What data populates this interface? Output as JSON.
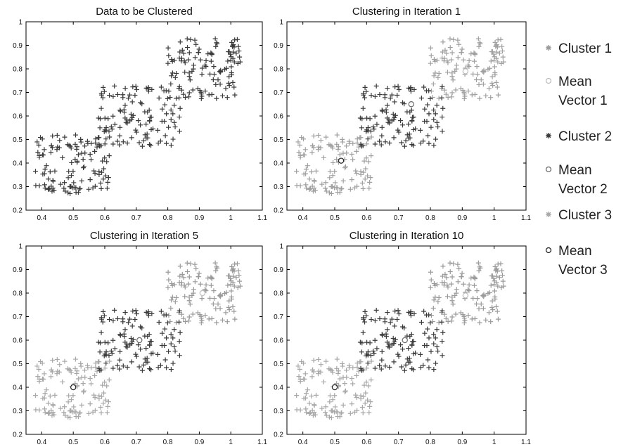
{
  "chart_data": [
    {
      "type": "scatter",
      "title": "Data to be Clustered",
      "xlim": [
        0.35,
        1.1
      ],
      "ylim": [
        0.2,
        1.0
      ],
      "xticks": [
        "0.4",
        "0.5",
        "0.6",
        "0.7",
        "0.8",
        "0.9",
        "1",
        "1.1"
      ],
      "yticks": [
        "0.2",
        "0.3",
        "0.4",
        "0.5",
        "0.6",
        "0.7",
        "0.8",
        "0.9",
        "1"
      ],
      "grid": false,
      "series": [
        {
          "color": "#3a3a3a",
          "marker": "plus",
          "region": "all",
          "count": 360
        }
      ],
      "means": []
    },
    {
      "type": "scatter",
      "title": "Clustering in Iteration 1",
      "xlim": [
        0.35,
        1.1
      ],
      "ylim": [
        0.2,
        1.0
      ],
      "xticks": [
        "0.4",
        "0.5",
        "0.6",
        "0.7",
        "0.8",
        "0.9",
        "1",
        "1.1"
      ],
      "yticks": [
        "0.2",
        "0.3",
        "0.4",
        "0.5",
        "0.6",
        "0.7",
        "0.8",
        "0.9",
        "1"
      ],
      "grid": false,
      "series": [
        {
          "name": "Cluster 1",
          "color": "#a0a0a0",
          "marker": "plus",
          "region": "high",
          "count": 120
        },
        {
          "name": "Cluster 2",
          "color": "#3a3a3a",
          "marker": "plus",
          "region": "middle",
          "count": 120
        },
        {
          "name": "Cluster 3",
          "color": "#a0a0a0",
          "marker": "plus",
          "region": "low",
          "count": 120
        }
      ],
      "means": [
        {
          "name": "Mean Vector 1",
          "x": 0.91,
          "y": 0.79,
          "color": "#bdbdbd"
        },
        {
          "name": "Mean Vector 2",
          "x": 0.74,
          "y": 0.65,
          "color": "#6a6a6a"
        },
        {
          "name": "Mean Vector 3",
          "x": 0.52,
          "y": 0.41,
          "color": "#222222"
        }
      ]
    },
    {
      "type": "scatter",
      "title": "Clustering in Iteration 5",
      "xlim": [
        0.35,
        1.1
      ],
      "ylim": [
        0.2,
        1.0
      ],
      "xticks": [
        "0.4",
        "0.5",
        "0.6",
        "0.7",
        "0.8",
        "0.9",
        "1",
        "1.1"
      ],
      "yticks": [
        "0.2",
        "0.3",
        "0.4",
        "0.5",
        "0.6",
        "0.7",
        "0.8",
        "0.9",
        "1"
      ],
      "grid": false,
      "series": [
        {
          "name": "Cluster 1",
          "color": "#9a9a9a",
          "marker": "plus",
          "region": "high",
          "count": 120
        },
        {
          "name": "Cluster 2",
          "color": "#3a3a3a",
          "marker": "plus",
          "region": "middle",
          "count": 120
        },
        {
          "name": "Cluster 3",
          "color": "#a8a8a8",
          "marker": "plus",
          "region": "low",
          "count": 120
        }
      ],
      "means": [
        {
          "name": "Mean Vector 1",
          "x": 0.91,
          "y": 0.8,
          "color": "#bdbdbd"
        },
        {
          "name": "Mean Vector 2",
          "x": 0.71,
          "y": 0.6,
          "color": "#6a6a6a"
        },
        {
          "name": "Mean Vector 3",
          "x": 0.5,
          "y": 0.4,
          "color": "#222222"
        }
      ]
    },
    {
      "type": "scatter",
      "title": "Clustering in Iteration 10",
      "xlim": [
        0.35,
        1.1
      ],
      "ylim": [
        0.2,
        1.0
      ],
      "xticks": [
        "0.4",
        "0.5",
        "0.6",
        "0.7",
        "0.8",
        "0.9",
        "1",
        "1.1"
      ],
      "yticks": [
        "0.2",
        "0.3",
        "0.4",
        "0.5",
        "0.6",
        "0.7",
        "0.8",
        "0.9",
        "1"
      ],
      "grid": false,
      "series": [
        {
          "name": "Cluster 1",
          "color": "#9a9a9a",
          "marker": "plus",
          "region": "high",
          "count": 120
        },
        {
          "name": "Cluster 2",
          "color": "#3a3a3a",
          "marker": "plus",
          "region": "middle",
          "count": 120
        },
        {
          "name": "Cluster 3",
          "color": "#a8a8a8",
          "marker": "plus",
          "region": "low",
          "count": 120
        }
      ],
      "means": [
        {
          "name": "Mean Vector 1",
          "x": 0.91,
          "y": 0.79,
          "color": "#bdbdbd"
        },
        {
          "name": "Mean Vector 2",
          "x": 0.72,
          "y": 0.6,
          "color": "#6a6a6a"
        },
        {
          "name": "Mean Vector 3",
          "x": 0.5,
          "y": 0.4,
          "color": "#222222"
        }
      ]
    }
  ],
  "legend": {
    "position": "right",
    "items": [
      {
        "label": "Cluster 1",
        "marker": "star",
        "color": "#9a9a9a"
      },
      {
        "label": "Mean Vector 1",
        "marker": "circle",
        "color": "#bdbdbd"
      },
      {
        "label": "Cluster 2",
        "marker": "star",
        "color": "#3a3a3a"
      },
      {
        "label": "Mean Vector 2",
        "marker": "circle",
        "color": "#6a6a6a"
      },
      {
        "label": "Cluster 3",
        "marker": "star",
        "color": "#a8a8a8"
      },
      {
        "label": "Mean Vector 3",
        "marker": "circle",
        "color": "#222222"
      }
    ]
  }
}
